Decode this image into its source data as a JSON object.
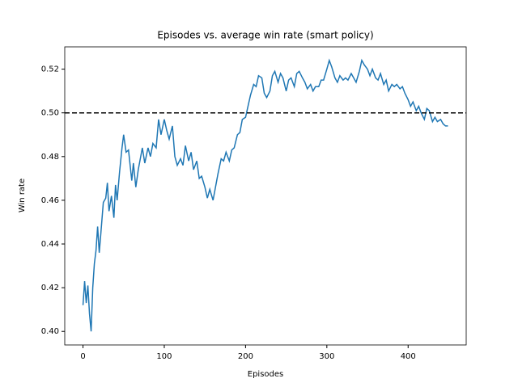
{
  "chart_data": {
    "type": "line",
    "title": "Episodes vs. average win rate (smart policy)",
    "x_label": "Episodes",
    "y_label": "Win rate",
    "x": [
      0,
      2,
      4,
      6,
      8,
      10,
      12,
      14,
      16,
      18,
      20,
      22,
      25,
      28,
      30,
      32,
      35,
      38,
      40,
      42,
      45,
      48,
      50,
      53,
      56,
      60,
      62,
      65,
      68,
      70,
      73,
      76,
      80,
      83,
      86,
      90,
      93,
      96,
      100,
      103,
      106,
      110,
      113,
      116,
      120,
      123,
      126,
      130,
      133,
      136,
      140,
      143,
      146,
      150,
      153,
      156,
      160,
      163,
      166,
      170,
      173,
      176,
      180,
      183,
      186,
      190,
      193,
      196,
      200,
      203,
      206,
      210,
      213,
      216,
      220,
      223,
      226,
      230,
      233,
      236,
      240,
      243,
      246,
      250,
      253,
      256,
      260,
      263,
      266,
      270,
      273,
      276,
      280,
      283,
      286,
      290,
      293,
      296,
      300,
      303,
      306,
      310,
      313,
      316,
      320,
      323,
      326,
      330,
      333,
      336,
      340,
      343,
      346,
      350,
      353,
      356,
      360,
      363,
      366,
      370,
      373,
      376,
      380,
      383,
      386,
      390,
      393,
      396,
      400,
      403,
      406,
      410,
      413,
      416,
      420,
      423,
      426,
      430,
      433,
      436,
      440,
      443,
      446,
      449
    ],
    "series": [
      {
        "name": "win rate",
        "color": "#1f77b4",
        "values": [
          0.412,
          0.423,
          0.413,
          0.421,
          0.408,
          0.4,
          0.42,
          0.431,
          0.437,
          0.448,
          0.436,
          0.445,
          0.459,
          0.461,
          0.468,
          0.455,
          0.462,
          0.452,
          0.467,
          0.46,
          0.473,
          0.484,
          0.49,
          0.482,
          0.483,
          0.469,
          0.477,
          0.466,
          0.474,
          0.478,
          0.484,
          0.477,
          0.484,
          0.48,
          0.486,
          0.484,
          0.497,
          0.49,
          0.497,
          0.492,
          0.488,
          0.494,
          0.48,
          0.476,
          0.479,
          0.476,
          0.485,
          0.478,
          0.482,
          0.474,
          0.478,
          0.47,
          0.471,
          0.466,
          0.461,
          0.465,
          0.46,
          0.466,
          0.472,
          0.479,
          0.478,
          0.482,
          0.478,
          0.483,
          0.484,
          0.49,
          0.491,
          0.497,
          0.498,
          0.503,
          0.508,
          0.513,
          0.512,
          0.517,
          0.516,
          0.509,
          0.507,
          0.51,
          0.517,
          0.519,
          0.514,
          0.518,
          0.516,
          0.51,
          0.515,
          0.516,
          0.512,
          0.518,
          0.519,
          0.516,
          0.514,
          0.511,
          0.513,
          0.51,
          0.512,
          0.512,
          0.515,
          0.515,
          0.52,
          0.524,
          0.521,
          0.516,
          0.514,
          0.517,
          0.515,
          0.516,
          0.515,
          0.518,
          0.516,
          0.514,
          0.519,
          0.524,
          0.522,
          0.52,
          0.517,
          0.52,
          0.516,
          0.515,
          0.518,
          0.513,
          0.515,
          0.51,
          0.513,
          0.512,
          0.513,
          0.511,
          0.512,
          0.509,
          0.506,
          0.503,
          0.505,
          0.501,
          0.503,
          0.5,
          0.497,
          0.502,
          0.501,
          0.496,
          0.498,
          0.496,
          0.497,
          0.495,
          0.494,
          0.494
        ]
      }
    ],
    "hline": {
      "value": 0.5,
      "color": "#000000",
      "style": "dashed"
    },
    "xlim": [
      -22.45,
      471.45
    ],
    "xticks": [
      0,
      100,
      200,
      300,
      400
    ],
    "ylim": [
      0.3938,
      0.5302
    ],
    "yticks": [
      {
        "value": 0.4,
        "label": "0.40"
      },
      {
        "value": 0.42,
        "label": "0.42"
      },
      {
        "value": 0.44,
        "label": "0.44"
      },
      {
        "value": 0.46,
        "label": "0.46"
      },
      {
        "value": 0.48,
        "label": "0.48"
      },
      {
        "value": 0.5,
        "label": "0.50"
      },
      {
        "value": 0.52,
        "label": "0.52"
      }
    ]
  }
}
